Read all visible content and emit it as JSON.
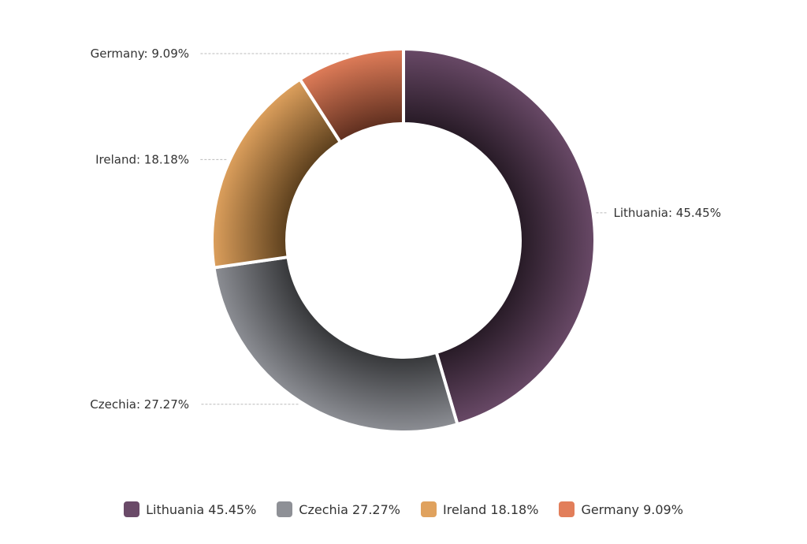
{
  "chart_data": {
    "type": "pie",
    "variant": "donut",
    "title": "",
    "series": [
      {
        "name": "Lithuania",
        "value": 45.45,
        "label": "Lithuania: 45.45%",
        "legend": "Lithuania 45.45%",
        "color": "#6a4a68"
      },
      {
        "name": "Czechia",
        "value": 27.27,
        "label": "Czechia: 27.27%",
        "legend": "Czechia 27.27%",
        "color": "#8e9096"
      },
      {
        "name": "Ireland",
        "value": 18.18,
        "label": "Ireland: 18.18%",
        "legend": "Ireland 18.18%",
        "color": "#e0a25e"
      },
      {
        "name": "Germany",
        "value": 9.09,
        "label": "Germany: 9.09%",
        "legend": "Germany 9.09%",
        "color": "#e27e5a"
      }
    ],
    "legend_position": "bottom"
  }
}
